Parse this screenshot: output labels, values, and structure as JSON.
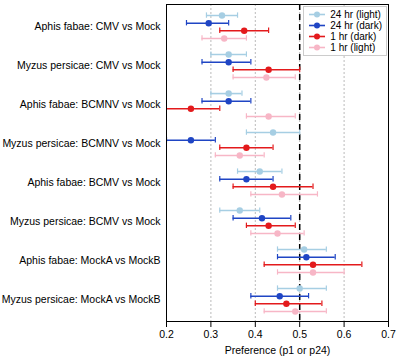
{
  "chart_data": {
    "type": "scatter",
    "x_label": "Preference (p1 or p24)",
    "xlim": [
      0.2,
      0.7
    ],
    "xticks": [
      0.2,
      0.3,
      0.4,
      0.5,
      0.6,
      0.7
    ],
    "grid": true,
    "legend": "top-right",
    "reference_line": 0.5,
    "categories": [
      "Aphis fabae: CMV vs Mock",
      "Myzus persicae: CMV vs Mock",
      "Aphis fabae: BCMNV vs Mock",
      "Myzus persicae: BCMNV vs Mock",
      "Aphis fabae: BCMV vs Mock",
      "Myzus persicae: BCMV vs Mock",
      "Aphis fabae: MockA vs MockB",
      "Myzus persicae: MockA vs MockB"
    ],
    "series": [
      {
        "name": "24 hr (light)",
        "color": "#a6cee3",
        "values": [
          0.325,
          0.34,
          0.34,
          0.44,
          0.41,
          0.365,
          0.51,
          0.5
        ],
        "lower": [
          0.29,
          0.3,
          0.3,
          0.38,
          0.36,
          0.32,
          0.45,
          0.45
        ],
        "upper": [
          0.36,
          0.38,
          0.37,
          0.5,
          0.46,
          0.41,
          0.56,
          0.56
        ]
      },
      {
        "name": "24 hr (dark)",
        "color": "#1f45c4",
        "values": [
          0.295,
          0.34,
          0.34,
          0.255,
          0.38,
          0.415,
          0.515,
          0.455
        ],
        "lower": [
          0.245,
          0.28,
          0.28,
          0.2,
          0.32,
          0.35,
          0.45,
          0.39
        ],
        "upper": [
          0.34,
          0.39,
          0.39,
          0.31,
          0.44,
          0.48,
          0.58,
          0.52
        ]
      },
      {
        "name": "1 hr (dark)",
        "color": "#e31a1c",
        "values": [
          0.375,
          0.43,
          0.255,
          0.38,
          0.44,
          0.43,
          0.53,
          0.47
        ],
        "lower": [
          0.32,
          0.35,
          0.19,
          0.32,
          0.35,
          0.38,
          0.42,
          0.4
        ],
        "upper": [
          0.43,
          0.5,
          0.32,
          0.44,
          0.53,
          0.49,
          0.64,
          0.55
        ]
      },
      {
        "name": "1 hr (light)",
        "color": "#f7b6c6",
        "values": [
          0.33,
          0.425,
          0.43,
          0.365,
          0.46,
          0.45,
          0.53,
          0.49
        ],
        "lower": [
          0.28,
          0.35,
          0.38,
          0.31,
          0.39,
          0.39,
          0.45,
          0.42
        ],
        "upper": [
          0.38,
          0.49,
          0.49,
          0.42,
          0.54,
          0.51,
          0.6,
          0.56
        ]
      }
    ]
  }
}
